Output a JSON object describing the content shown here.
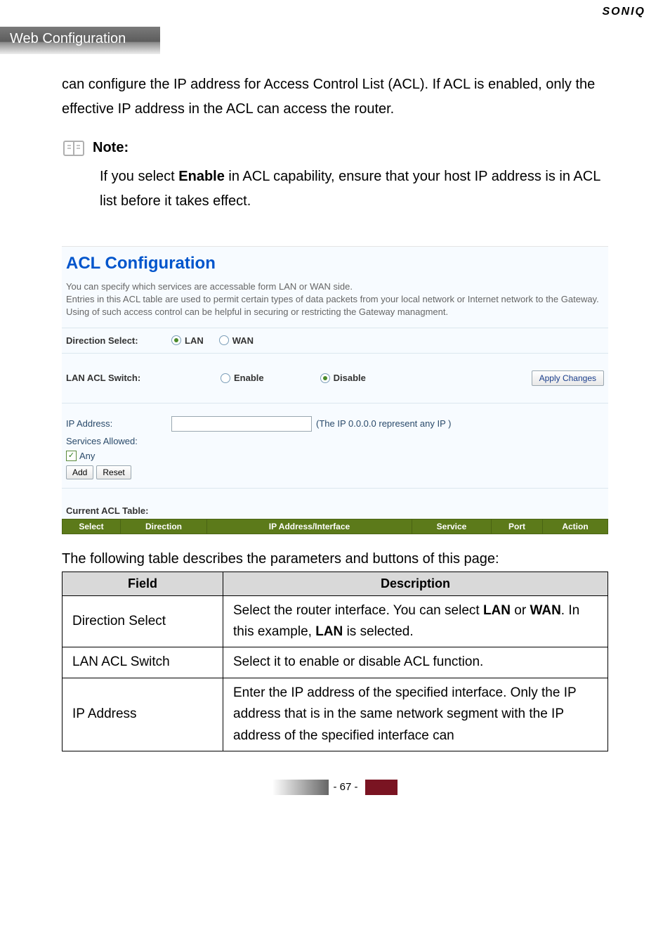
{
  "brand": "SONIQ",
  "header": "Web Configuration",
  "intro": "can configure the IP address for Access Control List (ACL). If ACL is enabled, only the effective IP address in the ACL can access the router.",
  "note": {
    "label": "Note:",
    "body_parts": [
      "If you select ",
      "Enable",
      " in ACL capability, ensure that your host IP address is in ACL list before it takes effect."
    ]
  },
  "acl": {
    "title": "ACL Configuration",
    "blurb": "You can specify which services are accessable form LAN or WAN side.\nEntries in this ACL table are used to permit certain types of data packets from your local network or Internet network to the Gateway.\nUsing of such access control can be helpful in securing or restricting the Gateway managment.",
    "direction_label": "Direction Select:",
    "direction_options": [
      "LAN",
      "WAN"
    ],
    "direction_selected": "LAN",
    "lan_switch_label": "LAN ACL Switch:",
    "lan_switch_options": [
      "Enable",
      "Disable"
    ],
    "lan_switch_selected": "Disable",
    "apply_btn": "Apply Changes",
    "ip_label": "IP Address:",
    "ip_value": "",
    "ip_hint": "(The IP 0.0.0.0 represent any IP )",
    "services_label": "Services Allowed:",
    "any_checked": true,
    "any_label": "Any",
    "add_btn": "Add",
    "reset_btn": "Reset",
    "cur_table_title": "Current ACL Table:",
    "table_headers": [
      "Select",
      "Direction",
      "IP Address/Interface",
      "Service",
      "Port",
      "Action"
    ]
  },
  "desc": {
    "intro": "The following table describes the parameters and buttons of this page:",
    "columns": [
      "Field",
      "Description"
    ],
    "rows": [
      {
        "field": "Direction Select",
        "desc_parts": [
          "Select the router interface. You can select ",
          "LAN",
          " or ",
          "WAN",
          ". In this example, ",
          "LAN",
          " is selected."
        ]
      },
      {
        "field": "LAN ACL Switch",
        "desc_plain": "Select it to enable or disable ACL function."
      },
      {
        "field": "IP Address",
        "desc_plain": "Enter the IP address of the specified interface. Only the IP address that is in the same network segment with the IP address of the specified interface can"
      }
    ]
  },
  "footer_page": "- 67 -",
  "colors": {
    "brand_text": "#000000",
    "header_bg_top": "#7a7a7a",
    "acl_title": "#0055cc",
    "table_header_bg": "#5c7a1a",
    "footer_accent": "#7a1422"
  }
}
